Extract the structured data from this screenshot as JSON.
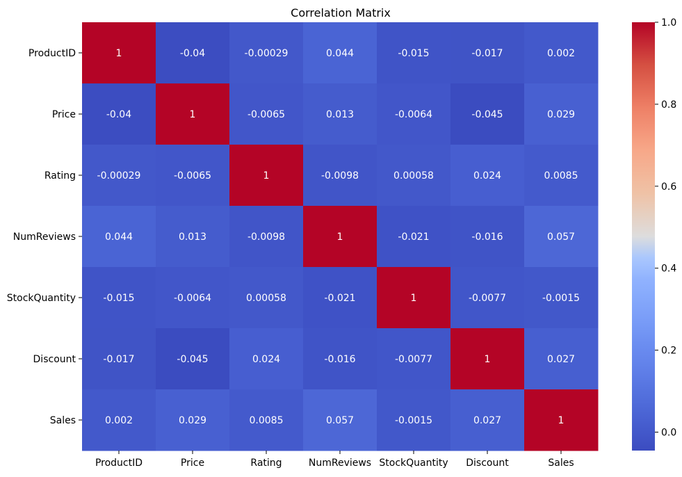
{
  "chart_data": {
    "type": "heatmap",
    "title": "Correlation Matrix",
    "colormap": "coolwarm",
    "low_color": "#3b4cc0",
    "high_color": "#b40426",
    "x_labels": [
      "ProductID",
      "Price",
      "Rating",
      "NumReviews",
      "StockQuantity",
      "Discount",
      "Sales"
    ],
    "y_labels": [
      "ProductID",
      "Price",
      "Rating",
      "NumReviews",
      "StockQuantity",
      "Discount",
      "Sales"
    ],
    "values": [
      [
        1,
        -0.04,
        -0.00029,
        0.044,
        -0.015,
        -0.017,
        0.002
      ],
      [
        -0.04,
        1,
        -0.0065,
        0.013,
        -0.0064,
        -0.045,
        0.029
      ],
      [
        -0.00029,
        -0.0065,
        1,
        -0.0098,
        0.00058,
        0.024,
        0.0085
      ],
      [
        0.044,
        0.013,
        -0.0098,
        1,
        -0.021,
        -0.016,
        0.057
      ],
      [
        -0.015,
        -0.0064,
        0.00058,
        -0.021,
        1,
        -0.0077,
        -0.0015
      ],
      [
        -0.017,
        -0.045,
        0.024,
        -0.016,
        -0.0077,
        1,
        0.027
      ],
      [
        0.002,
        0.029,
        0.0085,
        0.057,
        -0.0015,
        0.027,
        1
      ]
    ],
    "annotations": [
      [
        "1",
        "-0.04",
        "-0.00029",
        "0.044",
        "-0.015",
        "-0.017",
        "0.002"
      ],
      [
        "-0.04",
        "1",
        "-0.0065",
        "0.013",
        "-0.0064",
        "-0.045",
        "0.029"
      ],
      [
        "-0.00029",
        "-0.0065",
        "1",
        "-0.0098",
        "0.00058",
        "0.024",
        "0.0085"
      ],
      [
        "0.044",
        "0.013",
        "-0.0098",
        "1",
        "-0.021",
        "-0.016",
        "0.057"
      ],
      [
        "-0.015",
        "-0.0064",
        "0.00058",
        "-0.021",
        "1",
        "-0.0077",
        "-0.0015"
      ],
      [
        "-0.017",
        "-0.045",
        "0.024",
        "-0.016",
        "-0.0077",
        "1",
        "0.027"
      ],
      [
        "0.002",
        "0.029",
        "0.0085",
        "0.057",
        "-0.0015",
        "0.027",
        "1"
      ]
    ],
    "colorbar": {
      "range": [
        -0.045,
        1.0
      ],
      "ticks": [
        0.0,
        0.2,
        0.4,
        0.6,
        0.8,
        1.0
      ],
      "tick_labels": [
        "0.0",
        "0.2",
        "0.4",
        "0.6",
        "0.8",
        "1.0"
      ]
    }
  }
}
